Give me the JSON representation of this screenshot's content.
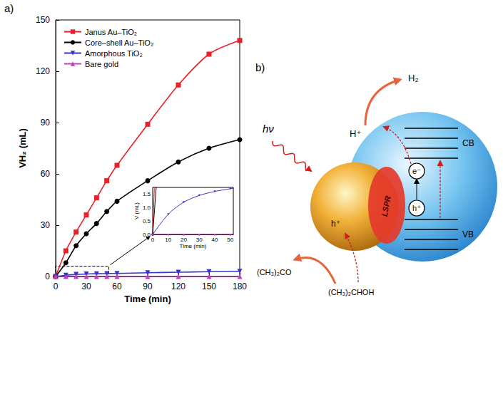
{
  "chart_data": {
    "type": "line",
    "panel_label": "a)",
    "x_label": "Time (min)",
    "y_label": "VH₂ (mL)",
    "x": [
      0,
      10,
      20,
      30,
      40,
      50,
      60,
      90,
      120,
      150,
      180
    ],
    "series": [
      {
        "name": "Janus Au–TiO₂",
        "color": "#e8202a",
        "marker": "square",
        "values": [
          0,
          15,
          26,
          36,
          46,
          56,
          65,
          89,
          112,
          130,
          138
        ]
      },
      {
        "name": "Core–shell Au–TiO₂",
        "color": "#000000",
        "marker": "circle",
        "values": [
          0,
          8,
          18,
          25,
          31,
          38,
          44,
          56,
          67,
          75,
          80
        ]
      },
      {
        "name": "Amorphous TiO₂",
        "color": "#3636c8",
        "marker": "triangle_down",
        "values": [
          0,
          0.75,
          1.2,
          1.45,
          1.6,
          1.7,
          1.8,
          2.2,
          2.5,
          2.8,
          3.0
        ]
      },
      {
        "name": "Bare gold",
        "color": "#c040c0",
        "marker": "triangle",
        "values": [
          0,
          0,
          0,
          0,
          0,
          0,
          0,
          0,
          0,
          0,
          0
        ]
      }
    ],
    "xlim": [
      0,
      180
    ],
    "xticks": [
      0,
      30,
      60,
      90,
      120,
      150,
      180
    ],
    "ylim": [
      0,
      150
    ],
    "yticks": [
      0,
      30,
      60,
      90,
      120,
      150
    ],
    "grid": false,
    "legend": "upper left",
    "inset": {
      "x_label": "Time (min)",
      "y_label": "V (mL)",
      "xlim": [
        0,
        52
      ],
      "xticks": [
        0,
        10,
        20,
        30,
        40,
        50
      ],
      "ylim": [
        0,
        1.75
      ],
      "yticks": [
        {
          "value": 0,
          "label": "0.0"
        },
        {
          "value": 0.5,
          "label": "0.5"
        },
        {
          "value": 1,
          "label": "1.0"
        },
        {
          "value": 1.5,
          "label": "1.5"
        }
      ],
      "zoom_box": {
        "ylim": [
          0,
          6
        ]
      }
    }
  },
  "diagram": {
    "panel_label": "b)",
    "photon": "hν",
    "proton": "H⁺",
    "hydrogen": "H₂",
    "conduction_band": "CB",
    "valence_band": "VB",
    "electron": "e⁻",
    "hole_tio2": "h⁺",
    "hole_au": "h⁺",
    "lspr": "LSPR",
    "product": "(CH₃)₂CO",
    "reactant": "(CH₃)₂CHOH"
  }
}
